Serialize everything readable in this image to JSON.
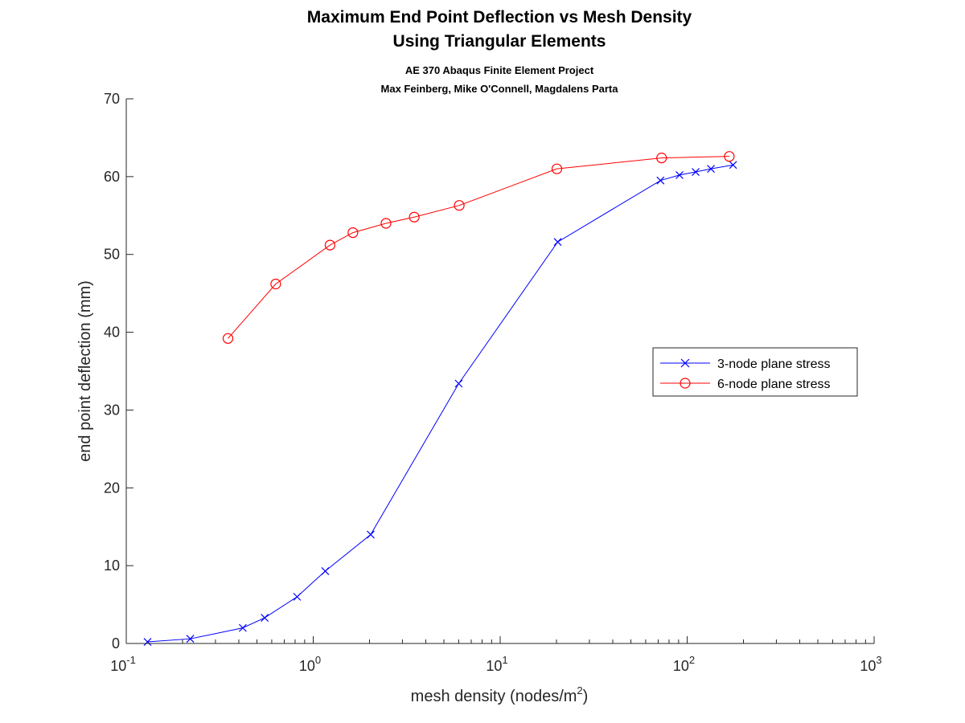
{
  "chart_data": {
    "type": "line",
    "title": [
      "Maximum End Point Deflection vs Mesh Density",
      "Using Triangular Elements"
    ],
    "subtitle": [
      "AE 370 Abaqus Finite Element Project",
      "Max Feinberg, Mike O'Connell, Magdalens Parta"
    ],
    "xlabel": {
      "text": "mesh density (nodes/m",
      "sup": "2",
      "suffix": ")"
    },
    "ylabel": "end point deflection (mm)",
    "xscale": "log",
    "xlim": [
      0.1,
      1000
    ],
    "ylim": [
      0,
      70
    ],
    "xticks": [
      {
        "value": 0.1,
        "base": "10",
        "exp": "-1"
      },
      {
        "value": 1,
        "base": "10",
        "exp": "0"
      },
      {
        "value": 10,
        "base": "10",
        "exp": "1"
      },
      {
        "value": 100,
        "base": "10",
        "exp": "2"
      },
      {
        "value": 1000,
        "base": "10",
        "exp": "3"
      }
    ],
    "yticks": [
      {
        "value": 0,
        "label": "0"
      },
      {
        "value": 10,
        "label": "10"
      },
      {
        "value": 20,
        "label": "20"
      },
      {
        "value": 30,
        "label": "30"
      },
      {
        "value": 40,
        "label": "40"
      },
      {
        "value": 50,
        "label": "50"
      },
      {
        "value": 60,
        "label": "60"
      },
      {
        "value": 70,
        "label": "70"
      }
    ],
    "grid": false,
    "legend_position": "right",
    "series": [
      {
        "name": "3-node plane stress",
        "color": "#0000ff",
        "marker": "x",
        "x": [
          0.13,
          0.22,
          0.42,
          0.55,
          0.82,
          1.16,
          2.03,
          6.0,
          20.3,
          72,
          91,
          111,
          134,
          176
        ],
        "y": [
          0.2,
          0.6,
          2.0,
          3.3,
          6.0,
          9.3,
          14.0,
          33.4,
          51.6,
          59.5,
          60.2,
          60.6,
          61.0,
          61.5
        ]
      },
      {
        "name": "6-node plane stress",
        "color": "#ff0000",
        "marker": "o",
        "x": [
          0.35,
          0.63,
          1.23,
          1.63,
          2.45,
          3.47,
          6.04,
          20.1,
          73,
          168
        ],
        "y": [
          39.2,
          46.2,
          51.2,
          52.8,
          54.0,
          54.8,
          56.3,
          61.0,
          62.4,
          62.6
        ]
      }
    ]
  }
}
